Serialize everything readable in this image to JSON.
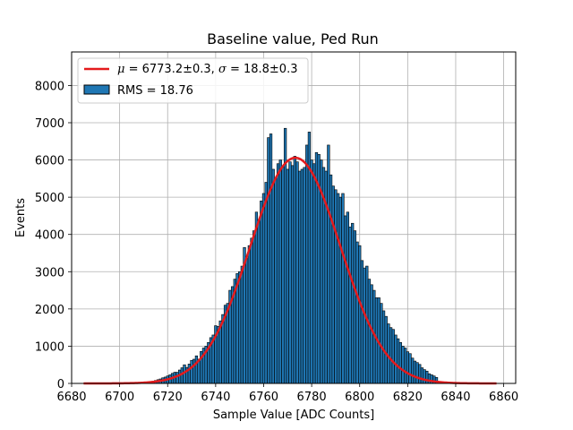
{
  "chart_data": {
    "type": "bar",
    "title": "Baseline value, Ped Run",
    "xlabel": "Sample Value [ADC Counts]",
    "ylabel": "Events",
    "xlim": [
      6680,
      6865
    ],
    "ylim": [
      0,
      8900
    ],
    "xticks": [
      6680,
      6700,
      6720,
      6740,
      6760,
      6780,
      6800,
      6820,
      6840,
      6860
    ],
    "yticks": [
      0,
      1000,
      2000,
      3000,
      4000,
      5000,
      6000,
      7000,
      8000
    ],
    "grid": true,
    "legend_position": "top-left",
    "legend": [
      {
        "label": "$\\mu = 6773.2\\pm0.3$, $\\sigma = 18.8\\pm0.3$",
        "kind": "line"
      },
      {
        "label": "RMS = 18.76",
        "kind": "bar"
      }
    ],
    "histogram": {
      "name": "RMS = 18.76",
      "bin_width": 1,
      "color": "#1f77b4",
      "edgecolor": "#000000",
      "x": [
        6714,
        6715,
        6716,
        6717,
        6718,
        6719,
        6720,
        6721,
        6722,
        6723,
        6724,
        6725,
        6726,
        6727,
        6728,
        6729,
        6730,
        6731,
        6732,
        6733,
        6734,
        6735,
        6736,
        6737,
        6738,
        6739,
        6740,
        6741,
        6742,
        6743,
        6744,
        6745,
        6746,
        6747,
        6748,
        6749,
        6750,
        6751,
        6752,
        6753,
        6754,
        6755,
        6756,
        6757,
        6758,
        6759,
        6760,
        6761,
        6762,
        6763,
        6764,
        6765,
        6766,
        6767,
        6768,
        6769,
        6770,
        6771,
        6772,
        6773,
        6774,
        6775,
        6776,
        6777,
        6778,
        6779,
        6780,
        6781,
        6782,
        6783,
        6784,
        6785,
        6786,
        6787,
        6788,
        6789,
        6790,
        6791,
        6792,
        6793,
        6794,
        6795,
        6796,
        6797,
        6798,
        6799,
        6800,
        6801,
        6802,
        6803,
        6804,
        6805,
        6806,
        6807,
        6808,
        6809,
        6810,
        6811,
        6812,
        6813,
        6814,
        6815,
        6816,
        6817,
        6818,
        6819,
        6820,
        6821,
        6822,
        6823,
        6824,
        6825,
        6826,
        6827,
        6828,
        6829,
        6830,
        6831,
        6832
      ],
      "values": [
        60,
        80,
        100,
        120,
        150,
        170,
        200,
        230,
        270,
        300,
        300,
        360,
        420,
        500,
        430,
        520,
        620,
        650,
        740,
        650,
        860,
        950,
        1000,
        1100,
        1230,
        1300,
        1550,
        1530,
        1680,
        1850,
        2100,
        2150,
        2500,
        2600,
        2800,
        2950,
        3000,
        3150,
        3650,
        3350,
        3700,
        3900,
        4100,
        4600,
        4400,
        4900,
        5100,
        5400,
        6600,
        6700,
        5750,
        5500,
        5900,
        6000,
        5800,
        6850,
        5750,
        5950,
        5850,
        6100,
        5950,
        5700,
        5750,
        5800,
        6400,
        6750,
        6000,
        5900,
        6200,
        6150,
        6000,
        5800,
        5700,
        6400,
        5600,
        5300,
        5200,
        5100,
        5000,
        5100,
        4500,
        4600,
        4200,
        4300,
        4100,
        3800,
        3700,
        3300,
        3100,
        3150,
        2800,
        2650,
        2500,
        2300,
        2300,
        2150,
        1950,
        1800,
        1600,
        1500,
        1450,
        1300,
        1200,
        1100,
        1000,
        950,
        850,
        800,
        680,
        600,
        560,
        510,
        420,
        370,
        330,
        260,
        230,
        200,
        160
      ]
    },
    "fit": {
      "type": "gaussian",
      "mu": 6773.2,
      "sigma": 18.8,
      "amplitude": 6060,
      "x_range": [
        6685,
        6857
      ],
      "color": "#e41a1c"
    }
  }
}
